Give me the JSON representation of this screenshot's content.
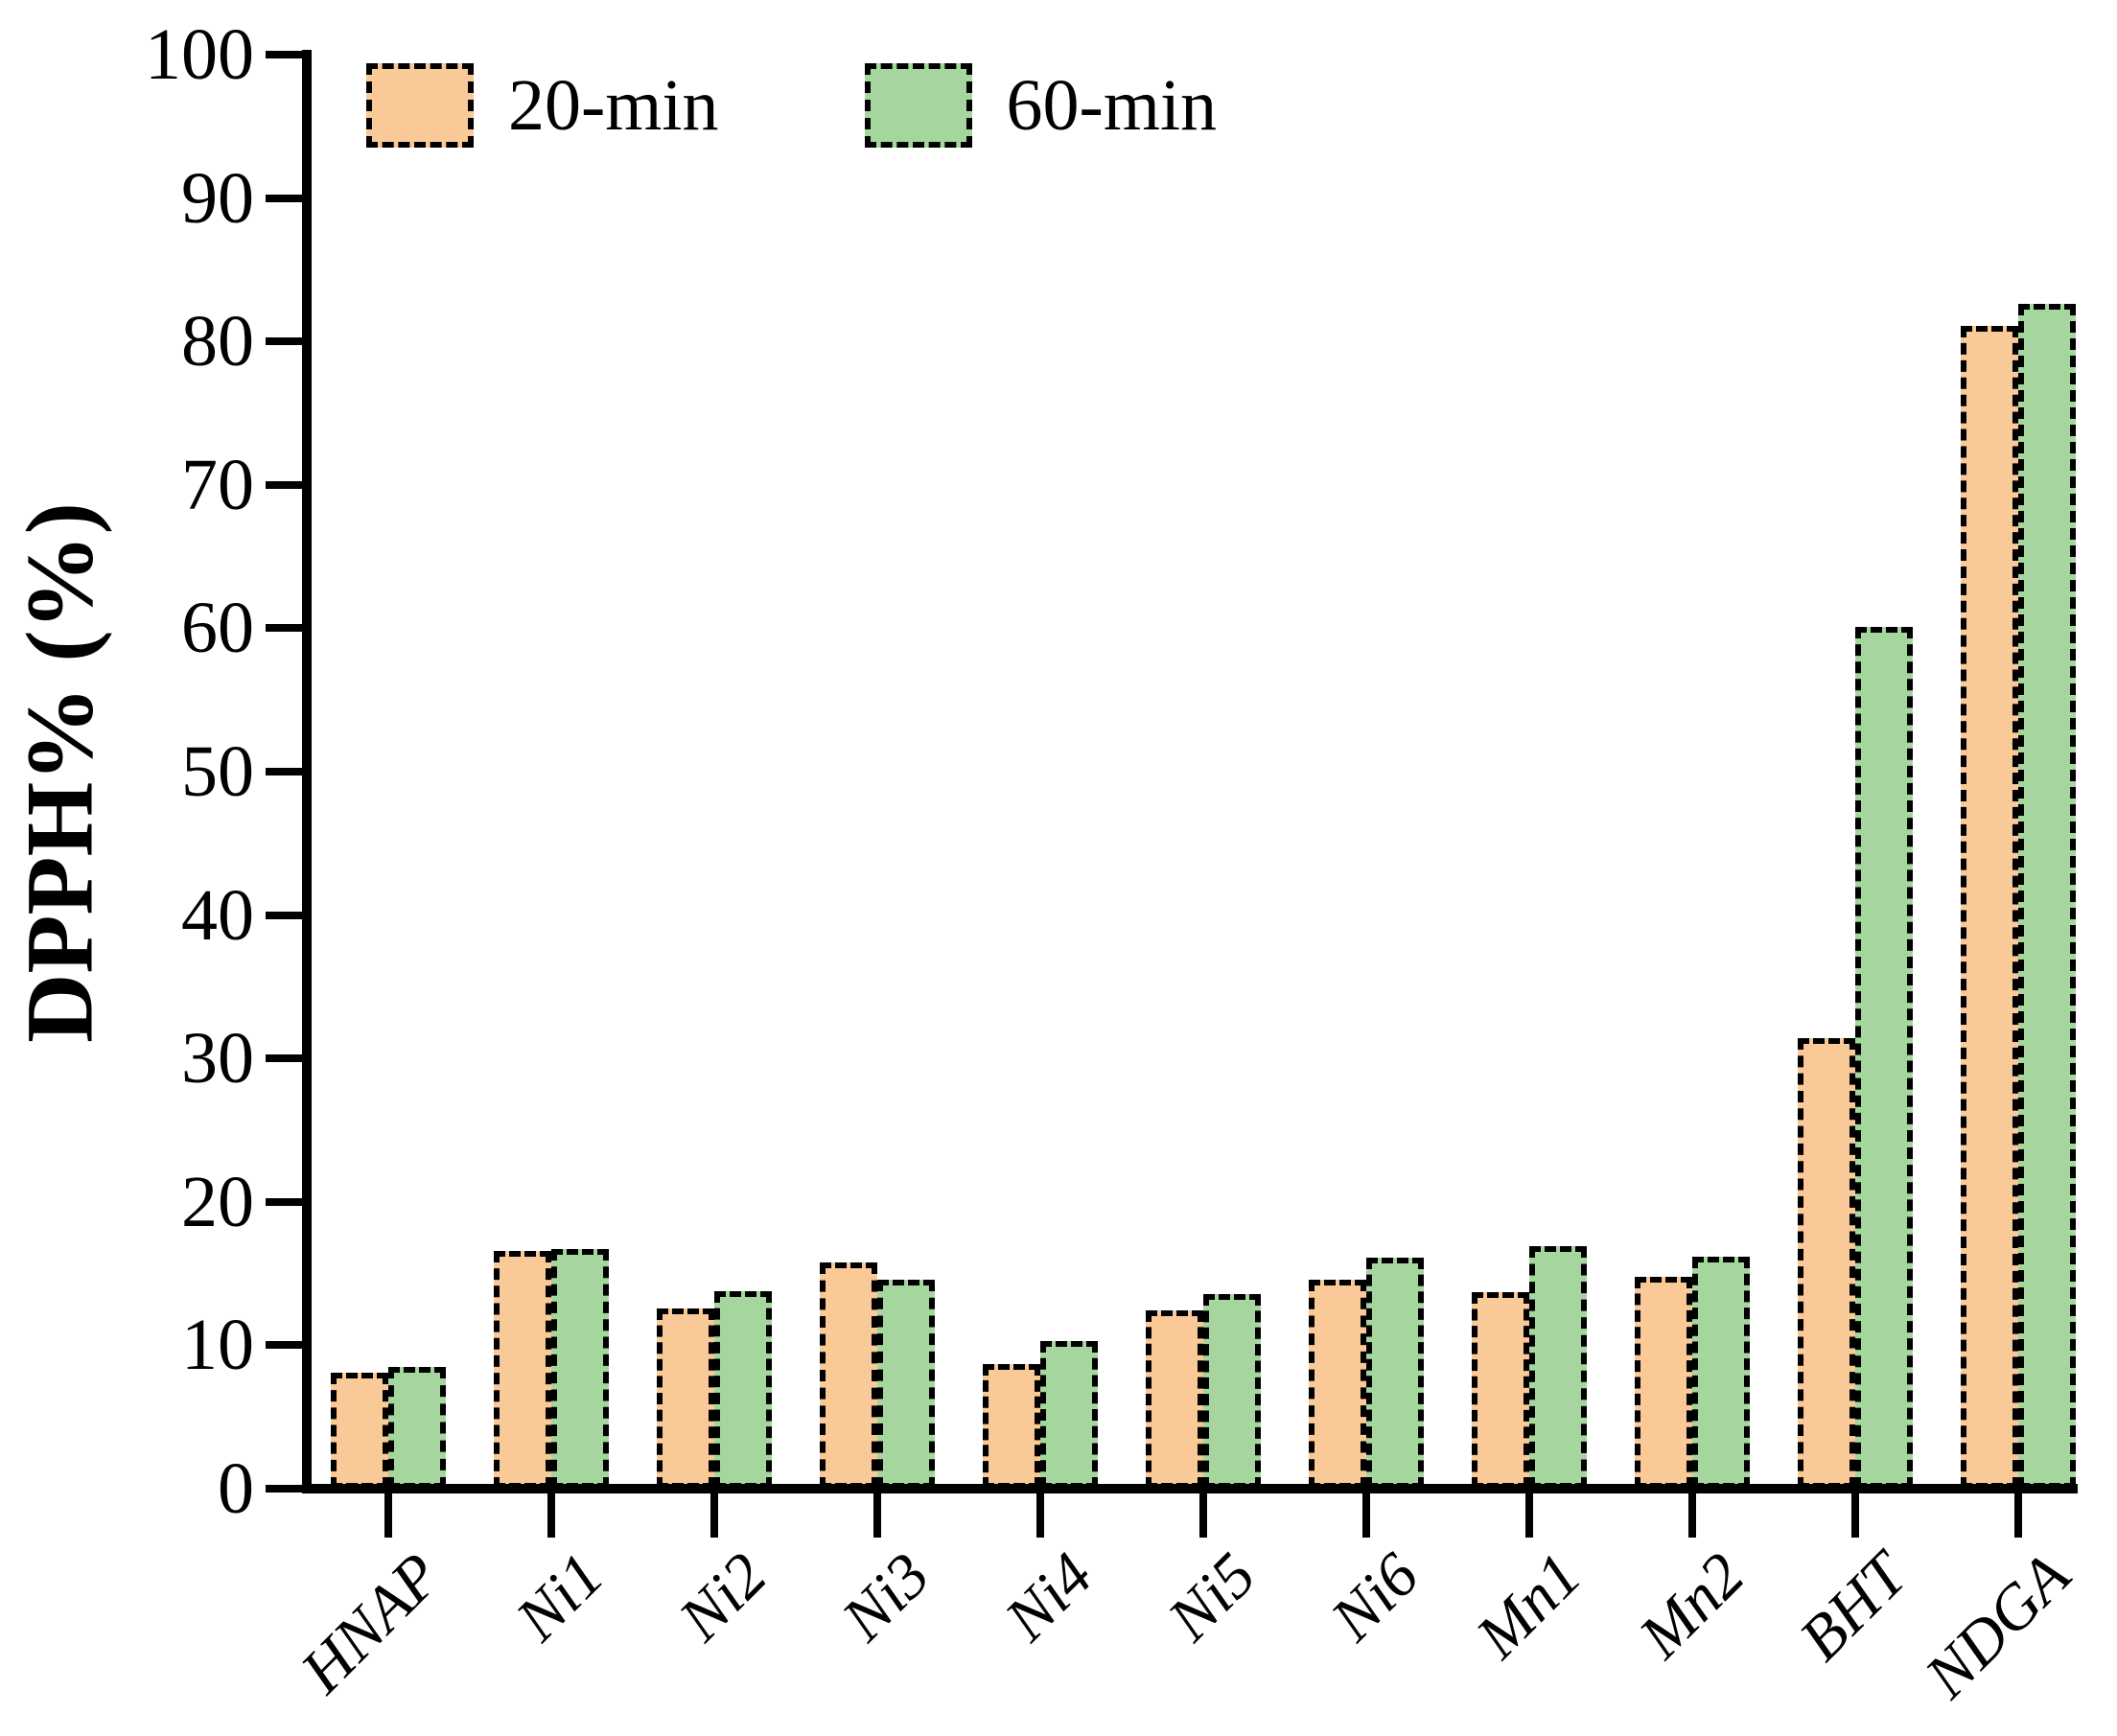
{
  "chart_data": {
    "type": "bar",
    "title": "",
    "xlabel": "",
    "ylabel": "DPPH% (%)",
    "ylim": [
      0,
      100
    ],
    "ytick_step": 10,
    "ytick_labels": [
      "0",
      "10",
      "20",
      "30",
      "40",
      "50",
      "60",
      "70",
      "80",
      "90",
      "100"
    ],
    "grid": false,
    "legend_position": "top-left-inside",
    "bar_edge_style": "dashed",
    "bar_edge_color": "#000000",
    "axis_color": "#000000",
    "categories": [
      "HNAP",
      "Ni1",
      "Ni2",
      "Ni3",
      "Ni4",
      "Ni5",
      "Ni6",
      "Mn1",
      "Mn2",
      "BHT",
      "NDGA"
    ],
    "series": [
      {
        "name": "20-min",
        "color": "#F9C998",
        "values": [
          8.1,
          16.6,
          12.6,
          15.8,
          8.7,
          12.4,
          14.6,
          13.7,
          14.8,
          31.4,
          81.1
        ]
      },
      {
        "name": "60-min",
        "color": "#A5D69E",
        "values": [
          8.5,
          16.7,
          13.8,
          14.6,
          10.3,
          13.6,
          16.1,
          16.9,
          16.2,
          60.1,
          82.6
        ]
      }
    ]
  }
}
